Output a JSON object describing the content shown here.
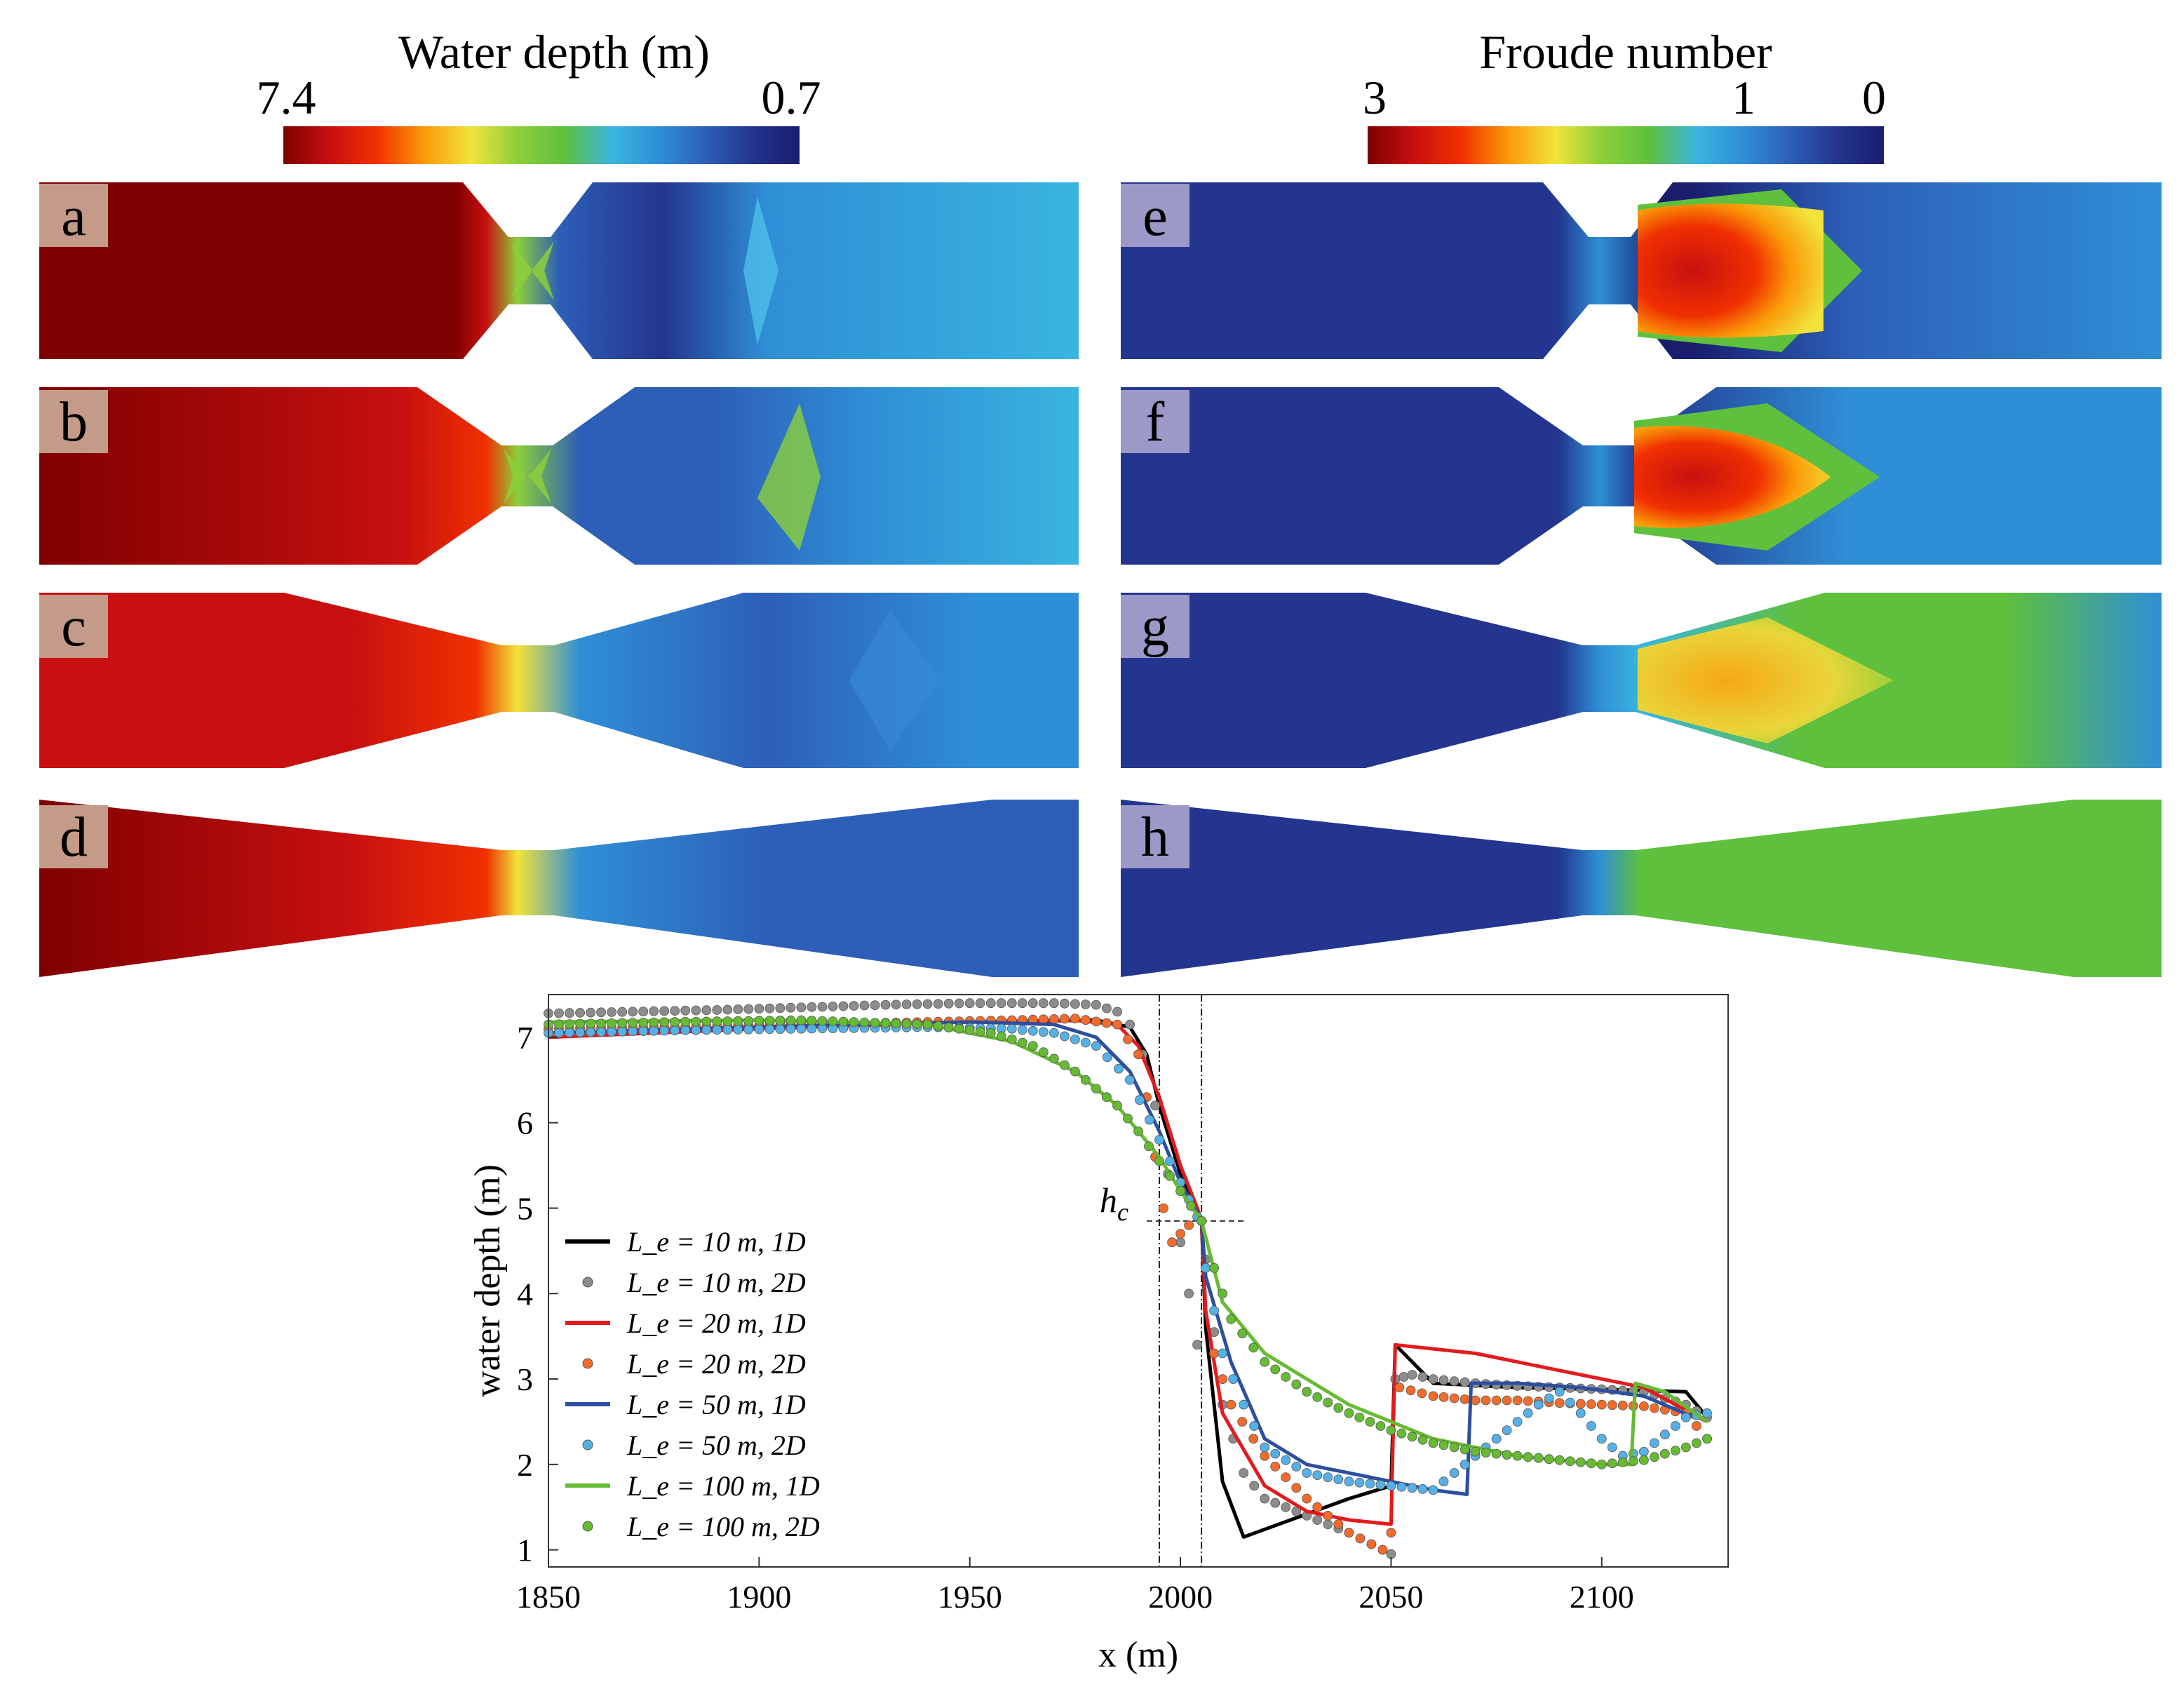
{
  "colorbars": [
    {
      "title": "Water depth (m)",
      "ticks": [
        "7.4",
        "0.7"
      ]
    },
    {
      "title": "Froude number",
      "ticks": [
        "3",
        "1",
        "0"
      ]
    }
  ],
  "panels": {
    "depth": [
      "a",
      "b",
      "c",
      "d"
    ],
    "froude": [
      "e",
      "f",
      "g",
      "h"
    ]
  },
  "colors": {
    "jet": [
      "#7f0000",
      "#c81010",
      "#f03000",
      "#fa9a08",
      "#f1e33a",
      "#8ccf3a",
      "#5fc03d",
      "#39b5df",
      "#2f8fd6",
      "#2d5fb8",
      "#23358e",
      "#1a1d6e"
    ]
  },
  "chart_data": {
    "type": "line",
    "xlabel": "x (m)",
    "ylabel": "water depth (m)",
    "xlim": [
      1850,
      2130
    ],
    "ylim": [
      0.8,
      7.5
    ],
    "xticks": [
      1850,
      1900,
      1950,
      2000,
      2050,
      2100
    ],
    "yticks": [
      1,
      2,
      3,
      4,
      5,
      6,
      7
    ],
    "annotation": {
      "text": "h_c",
      "x": 2005,
      "y": 4.85
    },
    "vlines": [
      1995,
      2005
    ],
    "legend_position": "lower-left",
    "series": [
      {
        "name": "L_e = 10 m, 1D",
        "kind": "line",
        "color": "#000000",
        "x": [
          1850,
          1900,
          1950,
          1980,
          1988,
          1992,
          1995,
          2000,
          2004,
          2005,
          2006,
          2010,
          2015,
          2040,
          2050,
          2051,
          2060,
          2080,
          2100,
          2120,
          2125
        ],
        "y": [
          7.05,
          7.12,
          7.18,
          7.2,
          7.12,
          6.8,
          6.2,
          5.4,
          5.0,
          4.85,
          3.6,
          1.8,
          1.15,
          1.6,
          1.75,
          3.4,
          2.95,
          2.9,
          2.88,
          2.85,
          2.55
        ]
      },
      {
        "name": "L_e = 10 m, 2D",
        "kind": "dots",
        "color": "#8c8c8c",
        "x": [
          1850,
          1870,
          1890,
          1910,
          1930,
          1950,
          1970,
          1980,
          1985,
          1988,
          1991,
          1994,
          1997,
          2000,
          2002,
          2004,
          2006,
          2010,
          2015,
          2020,
          2030,
          2040,
          2048,
          2050,
          2051,
          2055,
          2060,
          2070,
          2080,
          2090,
          2100,
          2110,
          2120,
          2125
        ],
        "y": [
          7.28,
          7.3,
          7.32,
          7.35,
          7.38,
          7.4,
          7.4,
          7.38,
          7.3,
          7.15,
          6.8,
          6.2,
          5.4,
          4.6,
          4.0,
          3.4,
          4.4,
          2.7,
          1.9,
          1.6,
          1.4,
          1.2,
          1.0,
          0.95,
          3.0,
          3.05,
          3.0,
          2.95,
          2.92,
          2.9,
          2.88,
          2.85,
          2.7,
          2.55
        ]
      },
      {
        "name": "L_e = 20 m, 1D",
        "kind": "line",
        "color": "#e41a1c",
        "x": [
          1850,
          1900,
          1950,
          1975,
          1985,
          1990,
          1995,
          2000,
          2004,
          2005,
          2006,
          2010,
          2020,
          2030,
          2040,
          2050,
          2051,
          2070,
          2090,
          2110,
          2125
        ],
        "y": [
          7.0,
          7.1,
          7.18,
          7.2,
          7.15,
          6.9,
          6.3,
          5.5,
          5.0,
          4.85,
          3.8,
          2.6,
          1.75,
          1.45,
          1.35,
          1.3,
          3.4,
          3.3,
          3.1,
          2.9,
          2.5
        ]
      },
      {
        "name": "L_e = 20 m, 2D",
        "kind": "dots",
        "color": "#f26b2a",
        "x": [
          1850,
          1880,
          1910,
          1940,
          1960,
          1975,
          1985,
          1990,
          1992,
          1994,
          1996,
          1998,
          2000,
          2002,
          2005,
          2008,
          2012,
          2020,
          2030,
          2040,
          2048,
          2050,
          2052,
          2060,
          2070,
          2080,
          2090,
          2100,
          2110,
          2120,
          2125
        ],
        "y": [
          7.1,
          7.12,
          7.15,
          7.18,
          7.2,
          7.22,
          7.15,
          6.8,
          6.3,
          5.6,
          5.0,
          4.6,
          4.7,
          4.8,
          4.85,
          3.3,
          2.7,
          2.1,
          1.6,
          1.2,
          1.0,
          1.2,
          2.9,
          2.8,
          2.75,
          2.75,
          2.72,
          2.7,
          2.68,
          2.6,
          2.3
        ]
      },
      {
        "name": "L_e = 50 m, 1D",
        "kind": "line",
        "color": "#2c4fa0",
        "x": [
          1850,
          1900,
          1950,
          1970,
          1980,
          1988,
          1995,
          2000,
          2004,
          2005,
          2006,
          2012,
          2020,
          2030,
          2045,
          2060,
          2068,
          2069,
          2080,
          2095,
          2110,
          2122
        ],
        "y": [
          7.05,
          7.12,
          7.18,
          7.15,
          7.0,
          6.6,
          5.9,
          5.3,
          4.95,
          4.85,
          4.2,
          3.2,
          2.3,
          2.0,
          1.85,
          1.7,
          1.65,
          2.95,
          2.95,
          2.9,
          2.8,
          2.55
        ]
      },
      {
        "name": "L_e = 50 m, 2D",
        "kind": "dots",
        "color": "#55b0e6",
        "x": [
          1850,
          1880,
          1910,
          1940,
          1960,
          1970,
          1980,
          1988,
          1995,
          2000,
          2004,
          2006,
          2010,
          2015,
          2020,
          2030,
          2040,
          2050,
          2060,
          2070,
          2075,
          2080,
          2085,
          2090,
          2095,
          2100,
          2105,
          2110,
          2120,
          2125
        ],
        "y": [
          7.05,
          7.08,
          7.1,
          7.12,
          7.1,
          7.05,
          6.9,
          6.5,
          5.8,
          5.3,
          4.9,
          4.3,
          3.3,
          2.7,
          2.2,
          1.9,
          1.8,
          1.75,
          1.7,
          2.1,
          2.3,
          2.5,
          2.7,
          2.85,
          2.6,
          2.3,
          2.1,
          2.15,
          2.55,
          2.6
        ]
      },
      {
        "name": "L_e = 100 m, 1D",
        "kind": "line",
        "color": "#66bb33",
        "x": [
          1850,
          1900,
          1940,
          1960,
          1975,
          1985,
          1995,
          2000,
          2005,
          2010,
          2020,
          2040,
          2060,
          2080,
          2100,
          2107,
          2108,
          2115,
          2125
        ],
        "y": [
          7.18,
          7.2,
          7.15,
          6.95,
          6.6,
          6.2,
          5.6,
          5.2,
          4.85,
          3.9,
          3.3,
          2.7,
          2.3,
          2.1,
          2.0,
          2.0,
          2.95,
          2.85,
          2.5
        ]
      },
      {
        "name": "L_e = 100 m, 2D",
        "kind": "dots",
        "color": "#66bb33",
        "x": [
          1850,
          1880,
          1910,
          1940,
          1955,
          1965,
          1975,
          1985,
          1990,
          1995,
          2000,
          2005,
          2008,
          2012,
          2020,
          2030,
          2040,
          2050,
          2060,
          2070,
          2080,
          2090,
          2100,
          2110,
          2120,
          2125
        ],
        "y": [
          7.15,
          7.18,
          7.2,
          7.15,
          7.05,
          6.9,
          6.6,
          6.2,
          5.9,
          5.55,
          5.2,
          4.85,
          4.3,
          3.7,
          3.2,
          2.85,
          2.6,
          2.4,
          2.25,
          2.15,
          2.1,
          2.05,
          2.0,
          2.05,
          2.2,
          2.3
        ]
      }
    ]
  }
}
